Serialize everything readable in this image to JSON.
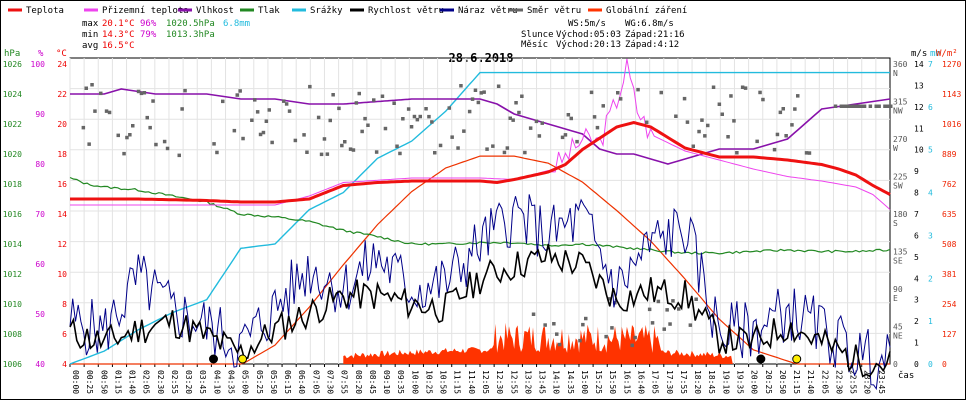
{
  "chart_data": {
    "type": "line",
    "title": "28.6.2018",
    "x_label": "čas",
    "x_ticks": [
      "00:00",
      "00:25",
      "00:50",
      "01:15",
      "01:40",
      "02:05",
      "02:30",
      "02:55",
      "03:20",
      "03:45",
      "04:10",
      "04:35",
      "05:00",
      "05:25",
      "05:50",
      "06:15",
      "06:40",
      "07:05",
      "07:30",
      "07:55",
      "08:20",
      "08:45",
      "09:10",
      "09:35",
      "10:00",
      "10:25",
      "10:50",
      "11:15",
      "11:40",
      "12:05",
      "12:30",
      "12:55",
      "13:20",
      "13:45",
      "14:10",
      "14:35",
      "15:00",
      "15:25",
      "15:50",
      "16:15",
      "16:40",
      "17:05",
      "17:30",
      "17:55",
      "18:20",
      "18:45",
      "19:10",
      "19:35",
      "20:00",
      "20:25",
      "20:50",
      "21:15",
      "21:40",
      "22:05",
      "22:30",
      "22:55",
      "23:20",
      "23:45"
    ],
    "legend": [
      {
        "name": "Teplota",
        "color": "#ee1111"
      },
      {
        "name": "Přizemní teplota",
        "color": "#ee44ee"
      },
      {
        "name": "Vlhkost",
        "color": "#8811aa"
      },
      {
        "name": "Tlak",
        "color": "#228822"
      },
      {
        "name": "Srážky",
        "color": "#22bbdd"
      },
      {
        "name": "Rychlost větru",
        "color": "#000000"
      },
      {
        "name": "Náraz větru",
        "color": "#000088"
      },
      {
        "name": "Směr větru",
        "color": "#666666"
      },
      {
        "name": "Globální záření",
        "color": "#ff3300"
      }
    ],
    "stats": {
      "max_label": "max",
      "max_temp": "20.1°C",
      "max_hum": "96%",
      "max_press": "1020.5hPa",
      "rain": "6.8mm",
      "min_label": "min",
      "min_temp": "14.3°C",
      "min_hum": "79%",
      "min_press": "1013.3hPa",
      "avg_label": "avg",
      "avg_temp": "16.5°C",
      "ws": "WS:5m/s",
      "wg": "WG:6.8m/s",
      "sun_label": "Slunce",
      "sun_rise": "Východ:05:03",
      "sun_set": "Západ:21:16",
      "moon_label": "Měsíc",
      "moon_rise": "Východ:20:13",
      "moon_set": "Západ:4:12"
    },
    "axes": {
      "hpa": {
        "label": "hPa",
        "color": "#228822",
        "ticks": [
          "1006",
          "1008",
          "1010",
          "1012",
          "1014",
          "1016",
          "1018",
          "1020",
          "1022",
          "1024",
          "1026"
        ]
      },
      "pct": {
        "label": "%",
        "color": "#cc00cc",
        "ticks": [
          "40",
          "50",
          "60",
          "70",
          "80",
          "90",
          "100"
        ]
      },
      "degc": {
        "label": "°C",
        "color": "#ee0000",
        "ticks": [
          "4",
          "6",
          "8",
          "10",
          "12",
          "14",
          "16",
          "18",
          "20",
          "22",
          "24"
        ]
      },
      "dir": {
        "label": "m/s",
        "ticks": [
          "0",
          "45",
          "90",
          "135",
          "180",
          "225",
          "270",
          "315",
          "360"
        ],
        "names": [
          "",
          "NE",
          "E",
          "SE",
          "S",
          "SW",
          "W",
          "NW",
          "N"
        ]
      },
      "ms": {
        "label": "m/s",
        "ticks": [
          "0",
          "1",
          "2",
          "3",
          "4",
          "5",
          "6",
          "7",
          "8",
          "9",
          "10",
          "11",
          "12",
          "13",
          "14"
        ]
      },
      "mm": {
        "label": "mm",
        "color": "#22bbdd",
        "ticks": [
          "0",
          "1",
          "2",
          "3",
          "4",
          "5",
          "6",
          "7"
        ]
      },
      "wm2": {
        "label": "W/m²",
        "color": "#ee2200",
        "ticks": [
          "0",
          "127",
          "254",
          "381",
          "508",
          "635",
          "762",
          "889",
          "1016",
          "1143",
          "1270"
        ]
      }
    },
    "series": {
      "temperature": {
        "x_hours": [
          0,
          2,
          4,
          5,
          6,
          7,
          8,
          9,
          10,
          11,
          12,
          12.5,
          13,
          14,
          14.5,
          15,
          16,
          16.5,
          17,
          18,
          19,
          20,
          21,
          22,
          22.5,
          23,
          23.5,
          24
        ],
        "values": [
          15.0,
          15.0,
          14.9,
          14.8,
          14.8,
          15.0,
          15.9,
          16.1,
          16.2,
          16.2,
          16.2,
          16.1,
          16.3,
          16.8,
          17.3,
          18.3,
          19.8,
          20.1,
          19.8,
          18.4,
          17.8,
          17.8,
          17.6,
          17.3,
          17.0,
          16.6,
          15.9,
          15.3
        ]
      },
      "humidity": {
        "x_hours": [
          0,
          1,
          1.5,
          2.5,
          4,
          5,
          6,
          7,
          8,
          10,
          12,
          12.5,
          13,
          14,
          15,
          15.5,
          16,
          16.5,
          17,
          17.5,
          18,
          19,
          20,
          21,
          21.5,
          22,
          23,
          24
        ],
        "values": [
          94,
          94,
          95,
          94,
          94,
          93,
          93,
          92,
          92,
          93,
          93,
          92,
          90,
          88,
          86,
          83,
          82,
          82,
          81,
          80,
          81,
          83,
          83,
          85,
          88,
          91,
          92,
          93
        ]
      },
      "pressure": {
        "x_hours": [
          0,
          0.5,
          1,
          2,
          3,
          4,
          5,
          6,
          7,
          8,
          9,
          10,
          11,
          12,
          13,
          14,
          15,
          16,
          17,
          18,
          19,
          20,
          21,
          22,
          23,
          24
        ],
        "values": [
          1018.4,
          1018.0,
          1017.8,
          1017.6,
          1017.2,
          1016.8,
          1016.0,
          1015.8,
          1015.5,
          1014.9,
          1014.5,
          1014.0,
          1014.0,
          1014.1,
          1014.1,
          1013.9,
          1014.0,
          1013.8,
          1013.6,
          1013.4,
          1013.4,
          1013.5,
          1013.6,
          1013.5,
          1013.5,
          1013.6
        ]
      },
      "precipitation": {
        "x_hours": [
          0,
          1,
          2,
          3,
          4,
          5,
          6,
          7,
          8,
          9,
          10,
          11,
          12,
          13,
          14,
          24
        ],
        "values": [
          0,
          0.3,
          0.8,
          1.2,
          1.5,
          2.7,
          2.8,
          3.6,
          4.0,
          4.8,
          5.2,
          5.9,
          6.8,
          6.8,
          6.8,
          6.8
        ]
      },
      "wind_speed": {
        "x_hours": [
          0,
          1,
          2,
          3,
          4,
          5,
          6,
          7,
          8,
          9,
          10,
          11,
          12,
          13,
          14,
          15,
          16,
          17,
          18,
          19,
          20,
          21,
          22,
          23,
          24
        ],
        "values": [
          1.5,
          1.0,
          1.6,
          2.0,
          1.3,
          0.5,
          1.6,
          2.4,
          3.2,
          3.2,
          2.8,
          2.6,
          4.0,
          4.6,
          5.0,
          4.6,
          3.0,
          3.4,
          3.2,
          1.2,
          1.0,
          1.8,
          1.0,
          0.2,
          0
        ]
      },
      "wind_gust": {
        "x_hours": [
          0,
          1,
          2,
          3,
          4,
          5,
          6,
          7,
          8,
          9,
          10,
          11,
          12,
          13,
          14,
          15,
          16,
          17,
          18,
          19,
          20,
          21,
          22,
          23,
          24
        ],
        "values": [
          2.0,
          1.5,
          4.0,
          2.5,
          1.8,
          0.8,
          2.6,
          4.5,
          3.5,
          5.0,
          3.5,
          3.8,
          5.6,
          7.0,
          6.0,
          6.8,
          3.5,
          5.6,
          6.4,
          1.5,
          1.6,
          2.5,
          1.6,
          0.5,
          0
        ]
      },
      "solar": {
        "x_hours": [
          5.05,
          6,
          7,
          8,
          9,
          10,
          11,
          12,
          13,
          14,
          15,
          16,
          17,
          18,
          19,
          20,
          21.27
        ],
        "values": [
          0,
          80,
          240,
          420,
          590,
          730,
          830,
          880,
          880,
          850,
          770,
          650,
          520,
          360,
          190,
          60,
          0
        ]
      },
      "wind_direction_range": {
        "from_hours": 0,
        "to_hours": 21,
        "typical_deg": "225-340"
      }
    }
  }
}
